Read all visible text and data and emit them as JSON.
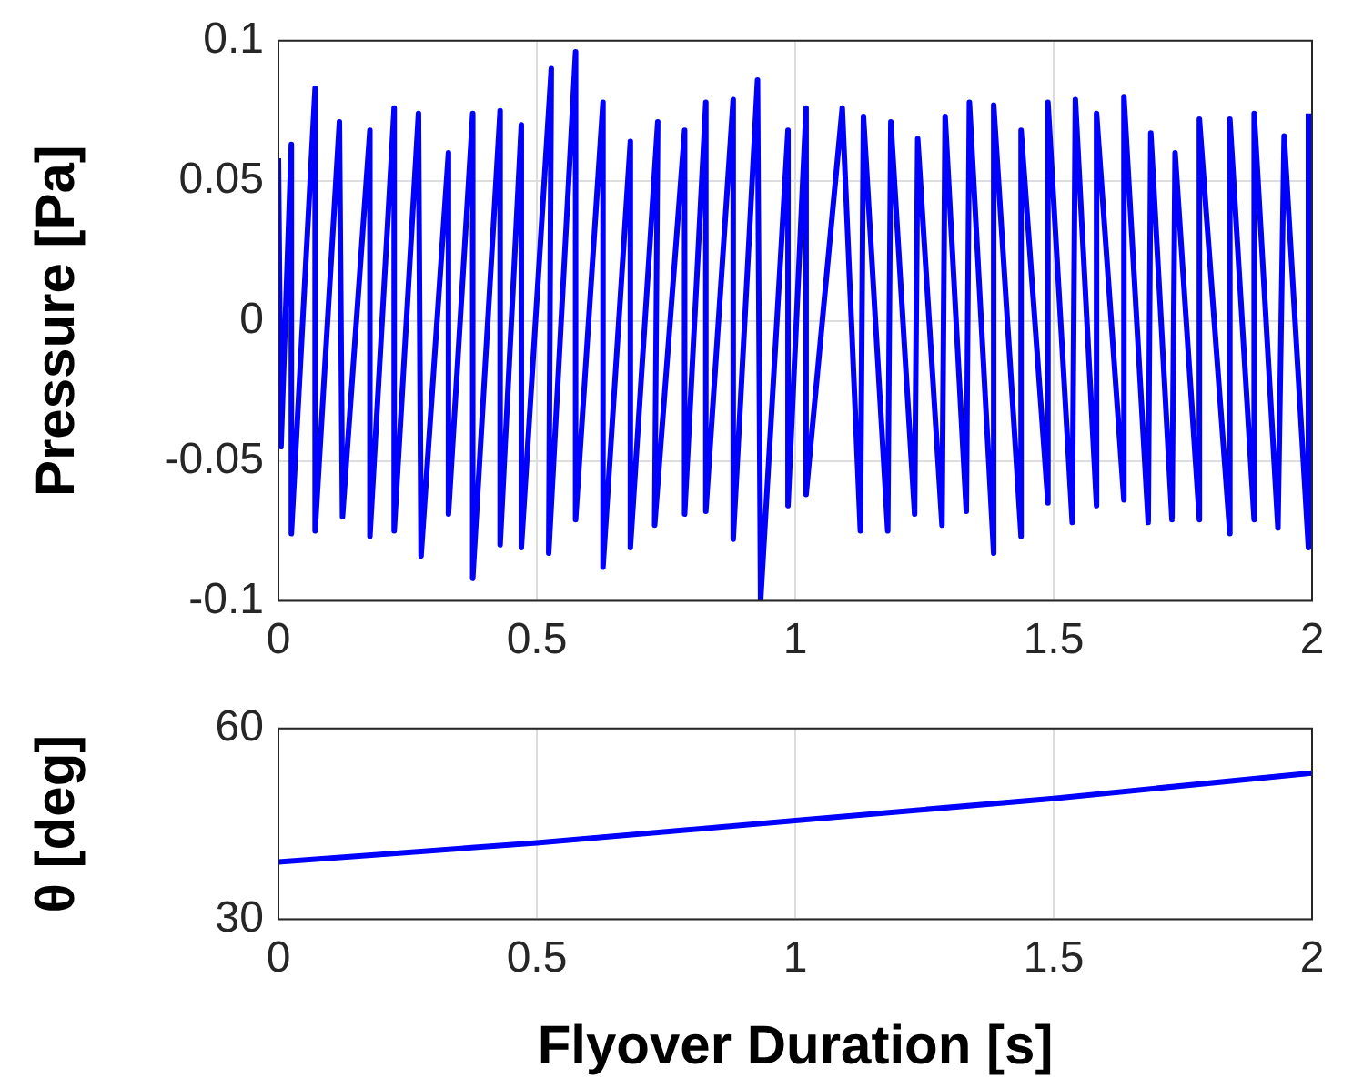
{
  "chart_data": [
    {
      "type": "line",
      "ylabel": "Pressure [Pa]",
      "xlim": [
        0,
        2
      ],
      "xticks": [
        0,
        0.5,
        1,
        1.5,
        2
      ],
      "ylim": [
        -0.1,
        0.1
      ],
      "yticks": [
        -0.1,
        -0.05,
        0,
        0.05,
        0.1
      ],
      "grid": true,
      "x": [
        0,
        0.005,
        0.025,
        0.025,
        0.071,
        0.071,
        0.118,
        0.124,
        0.177,
        0.177,
        0.224,
        0.224,
        0.271,
        0.276,
        0.329,
        0.329,
        0.376,
        0.376,
        0.429,
        0.429,
        0.47,
        0.47,
        0.528,
        0.523,
        0.575,
        0.575,
        0.628,
        0.628,
        0.681,
        0.681,
        0.734,
        0.728,
        0.786,
        0.786,
        0.827,
        0.827,
        0.88,
        0.88,
        0.927,
        0.933,
        0.986,
        0.986,
        1.021,
        1.021,
        1.091,
        1.126,
        1.132,
        1.179,
        1.185,
        1.231,
        1.237,
        1.284,
        1.29,
        1.331,
        1.337,
        1.384,
        1.384,
        1.437,
        1.437,
        1.489,
        1.489,
        1.536,
        1.542,
        1.583,
        1.583,
        1.636,
        1.636,
        1.683,
        1.688,
        1.729,
        1.735,
        1.782,
        1.782,
        1.841,
        1.841,
        1.888,
        1.888,
        1.934,
        1.946,
        1.993,
        1.993
      ],
      "series": [
        {
          "color": "#0000ff",
          "values": [
            0.058,
            -0.045,
            0.063,
            -0.076,
            0.083,
            -0.075,
            0.071,
            -0.07,
            0.068,
            -0.077,
            0.076,
            -0.075,
            0.074,
            -0.084,
            0.06,
            -0.069,
            0.074,
            -0.092,
            0.075,
            -0.08,
            0.07,
            -0.081,
            0.09,
            -0.083,
            0.096,
            -0.071,
            0.078,
            -0.088,
            0.064,
            -0.081,
            0.071,
            -0.073,
            0.068,
            -0.069,
            0.078,
            -0.068,
            0.079,
            -0.078,
            0.086,
            -0.1,
            0.068,
            -0.066,
            0.076,
            -0.062,
            0.076,
            -0.075,
            0.073,
            -0.075,
            0.071,
            -0.069,
            0.065,
            -0.073,
            0.073,
            -0.068,
            0.078,
            -0.083,
            0.077,
            -0.077,
            0.068,
            -0.065,
            0.078,
            -0.072,
            0.079,
            -0.066,
            0.074,
            -0.064,
            0.08,
            -0.072,
            0.067,
            -0.071,
            0.06,
            -0.071,
            0.072,
            -0.076,
            0.072,
            -0.071,
            0.074,
            -0.074,
            0.066,
            -0.081,
            0.074
          ]
        }
      ]
    },
    {
      "type": "line",
      "xlabel": "Flyover Duration [s]",
      "ylabel": "θ [deg]",
      "xlim": [
        0,
        2
      ],
      "xticks": [
        0,
        0.5,
        1,
        1.5,
        2
      ],
      "ylim": [
        30,
        60
      ],
      "yticks": [
        30,
        60
      ],
      "grid": true,
      "x": [
        0,
        0.5,
        1,
        1.5,
        2
      ],
      "series": [
        {
          "color": "#0000ff",
          "values": [
            39,
            42,
            45.5,
            49,
            53
          ]
        }
      ]
    }
  ]
}
